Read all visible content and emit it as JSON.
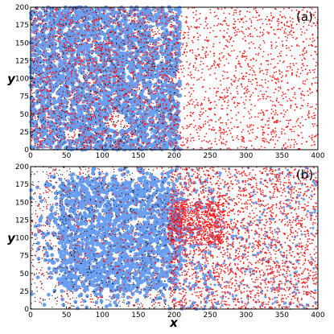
{
  "figure": {
    "xlabel": "x",
    "ylabel": "y"
  },
  "colors": {
    "blue_species": "#6a9ef0",
    "red_species": "#ff1a1a",
    "black_species": "#000000"
  },
  "chart_data": [
    {
      "type": "scatter",
      "panel_label": "(a)",
      "xlabel": "",
      "ylabel": "y",
      "xlim": [
        0,
        400
      ],
      "ylim": [
        0,
        200
      ],
      "x_ticks": [
        "0",
        "50",
        "100",
        "150",
        "200",
        "250",
        "300",
        "350",
        "400"
      ],
      "y_ticks": [
        "0",
        "25",
        "50",
        "75",
        "100",
        "125",
        "150",
        "175",
        "200"
      ],
      "grid": false,
      "description_regions": {
        "blue_domain_x_range": [
          0,
          205
        ],
        "red_domain_x_range": [
          200,
          400
        ]
      },
      "series": [
        {
          "color": "#6a9ef0",
          "marker": "dot",
          "density": "dense",
          "region": "x 0-205"
        },
        {
          "color": "#ff1a1a",
          "marker": "dot",
          "density": "medium",
          "region": "x 0-400"
        },
        {
          "color": "#000000",
          "marker": "dot",
          "density": "sparse",
          "region": "x 0-205"
        }
      ]
    },
    {
      "type": "scatter",
      "panel_label": "(b)",
      "xlabel": "x",
      "ylabel": "y",
      "xlim": [
        0,
        400
      ],
      "ylim": [
        0,
        200
      ],
      "x_ticks": [
        "0",
        "50",
        "100",
        "150",
        "200",
        "250",
        "300",
        "350",
        "400"
      ],
      "y_ticks": [
        "0",
        "25",
        "50",
        "75",
        "100",
        "125",
        "150",
        "175",
        "200"
      ],
      "grid": false,
      "series": [
        {
          "color": "#6a9ef0",
          "marker": "dot",
          "density": "clustered",
          "region": "x 0-260"
        },
        {
          "color": "#ff1a1a",
          "marker": "dot",
          "density": "clustered",
          "region": "x 180-400"
        },
        {
          "color": "#000000",
          "marker": "dot",
          "density": "sparse",
          "region": "x 0-200"
        }
      ]
    }
  ]
}
